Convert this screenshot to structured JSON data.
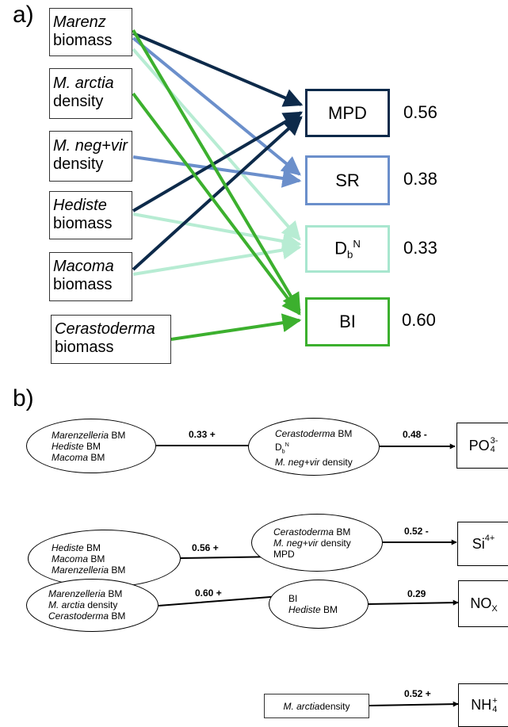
{
  "panel_a": {
    "label": "a)",
    "predictors": [
      {
        "name": "Marenz",
        "qualifier": "biomass"
      },
      {
        "name": "M. arctia",
        "qualifier": "density"
      },
      {
        "name": "M. neg+vir",
        "qualifier": "density"
      },
      {
        "name": "Hediste",
        "qualifier": "biomass"
      },
      {
        "name": "Macoma",
        "qualifier": "biomass"
      },
      {
        "name": "Cerastoderma",
        "qualifier": "biomass"
      }
    ],
    "responses": [
      {
        "label": "MPD",
        "r2": "0.56",
        "color": "#0d2a4a"
      },
      {
        "label": "SR",
        "r2": "0.38",
        "color": "#6b8fcb"
      },
      {
        "label": "D",
        "sub": "b",
        "sup": "N",
        "r2": "0.33",
        "color": "#a8e6cf"
      },
      {
        "label": "BI",
        "r2": "0.60",
        "color": "#3cb02e"
      }
    ]
  },
  "panel_b": {
    "label": "b)",
    "rows": [
      {
        "left": [
          {
            "i": "Marenzelleria",
            "t": " BM"
          },
          {
            "i": "Hediste",
            "t": " BM"
          },
          {
            "i": "Macoma",
            "t": " BM"
          }
        ],
        "coef1": "0.33 +",
        "mid": {
          "l1i": "Cerastoderma",
          "l1t": " BM",
          "l2": "D",
          "l2sub": "b",
          "l2sup": "N",
          "l3i": "M. neg+vir",
          "l3t": " density"
        },
        "coef2": "0.48 -",
        "target": {
          "main": "PO",
          "sub": "4",
          "sup": "3-"
        }
      },
      {
        "left": [
          {
            "i": "Hediste",
            "t": " BM"
          },
          {
            "i": "Macoma",
            "t": " BM"
          },
          {
            "i": "Marenzelleria",
            "t": " BM"
          }
        ],
        "coef1": "0.56 +",
        "mid": {
          "l1i": "Cerastoderma",
          "l1t": " BM",
          "l2i": "M. neg+vir",
          "l2t": " density",
          "l3": "MPD"
        },
        "coef2": "0.52 -",
        "target": {
          "main": "Si",
          "sup": "4+"
        }
      },
      {
        "left": [
          {
            "i": "Marenzelleria",
            "t": " BM"
          },
          {
            "i": "M. arctia",
            "t": " density"
          },
          {
            "i": "Cerastoderma",
            "t": " BM"
          }
        ],
        "coef1": "0.60 +",
        "mid": {
          "l1": "BI",
          "l2i": "Hediste",
          "l2t": " BM"
        },
        "coef2": "0.29",
        "target": {
          "main": "NO",
          "sub": "X"
        }
      },
      {
        "box": {
          "i": "M. arctia",
          "t": " density"
        },
        "coef": "0.52 +",
        "target": {
          "main": "NH",
          "sub": "4",
          "sup": "+"
        }
      }
    ]
  }
}
